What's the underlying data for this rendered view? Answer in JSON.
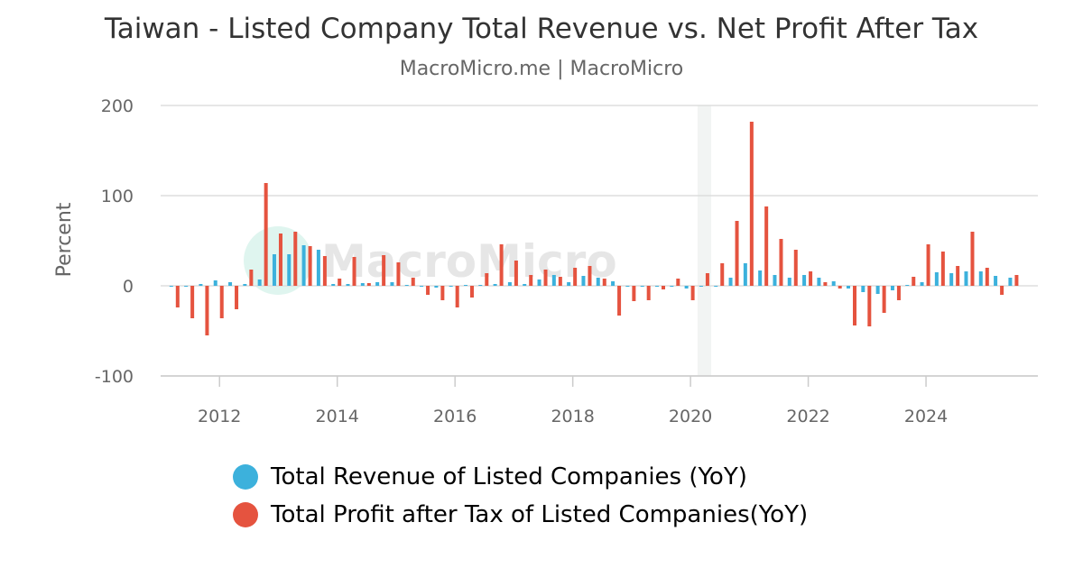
{
  "title": "Taiwan - Listed Company Total Revenue vs. Net Profit After Tax",
  "subtitle": "MacroMicro.me | MacroMicro",
  "watermark": "MacroMicro",
  "colors": {
    "revenue": "#3cb1dc",
    "profit": "#e5533f",
    "grid": "#dddddd",
    "shade": "#f2f4f3"
  },
  "chart_data": {
    "type": "bar",
    "ylabel": "Percent",
    "ylim": [
      -100,
      200
    ],
    "yticks": [
      -100,
      0,
      100,
      200
    ],
    "xlim": [
      2011.0,
      2025.9
    ],
    "xticks": [
      2012,
      2014,
      2016,
      2018,
      2020,
      2022,
      2024
    ],
    "shaded_period": [
      2020.12,
      2020.35
    ],
    "x": [
      2011.25,
      2011.5,
      2011.75,
      2012.0,
      2012.25,
      2012.5,
      2012.75,
      2013.0,
      2013.25,
      2013.5,
      2013.75,
      2014.0,
      2014.25,
      2014.5,
      2014.75,
      2015.0,
      2015.25,
      2015.5,
      2015.75,
      2016.0,
      2016.25,
      2016.5,
      2016.75,
      2017.0,
      2017.25,
      2017.5,
      2017.75,
      2018.0,
      2018.25,
      2018.5,
      2018.75,
      2019.0,
      2019.25,
      2019.5,
      2019.75,
      2020.0,
      2020.25,
      2020.5,
      2020.75,
      2021.0,
      2021.25,
      2021.5,
      2021.75,
      2022.0,
      2022.25,
      2022.5,
      2022.75,
      2023.0,
      2023.25,
      2023.5,
      2023.75,
      2024.0,
      2024.25,
      2024.5,
      2024.75,
      2025.0,
      2025.25,
      2025.5
    ],
    "series": [
      {
        "name": "Total Revenue of Listed Companies (YoY)",
        "values": [
          0,
          0,
          2,
          6,
          4,
          2,
          7,
          35,
          35,
          45,
          40,
          2,
          2,
          3,
          4,
          4,
          1,
          -1,
          -2,
          -1,
          1,
          1,
          2,
          4,
          2,
          7,
          12,
          4,
          11,
          9,
          5,
          0,
          0,
          0,
          0,
          -3,
          0,
          0,
          9,
          25,
          17,
          12,
          9,
          12,
          9,
          5,
          -3,
          -7,
          -9,
          -5,
          1,
          4,
          15,
          14,
          16,
          16,
          11,
          9
        ]
      },
      {
        "name": "Total Profit after Tax of Listed Companies(YoY)",
        "values": [
          -24,
          -36,
          -55,
          -36,
          -26,
          18,
          114,
          58,
          60,
          44,
          33,
          8,
          32,
          3,
          34,
          26,
          9,
          -10,
          -16,
          -24,
          -13,
          14,
          46,
          28,
          12,
          18,
          10,
          20,
          22,
          8,
          -33,
          -17,
          -16,
          -4,
          8,
          -16,
          14,
          25,
          72,
          182,
          88,
          52,
          40,
          16,
          4,
          -3,
          -44,
          -45,
          -30,
          -16,
          10,
          46,
          38,
          22,
          60,
          20,
          -10,
          12
        ]
      }
    ]
  }
}
